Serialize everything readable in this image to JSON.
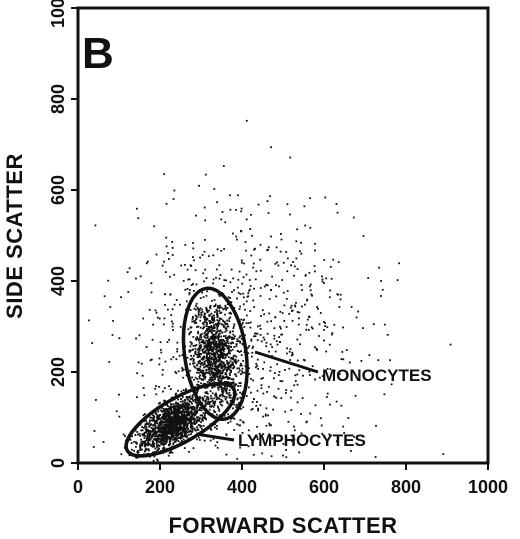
{
  "chart_data": {
    "type": "scatter",
    "panel_label": "B",
    "xlabel": "FORWARD SCATTER",
    "ylabel": "SIDE SCATTER",
    "xlim": [
      0,
      1000
    ],
    "ylim": [
      0,
      1000
    ],
    "xticks": [
      "0",
      "200",
      "400",
      "600",
      "800",
      "1000"
    ],
    "yticks": [
      "0",
      "200",
      "400",
      "600",
      "800",
      "1000"
    ],
    "grid": false,
    "annotations": [
      {
        "label": "MONOCYTES",
        "gate_center": [
          335,
          240
        ],
        "gate_radius": [
          75,
          145
        ],
        "gate_rotation_deg": 8
      },
      {
        "label": "LYMPHOCYTES",
        "gate_center": [
          250,
          95
        ],
        "gate_radius": [
          150,
          48
        ],
        "gate_rotation_deg": 30
      }
    ],
    "clusters": [
      {
        "name": "lymphocytes",
        "center": [
          230,
          85
        ],
        "spread": [
          45,
          22
        ],
        "rotation_deg": 30,
        "count": 1400
      },
      {
        "name": "monocytes",
        "center": [
          335,
          235
        ],
        "spread": [
          28,
          60
        ],
        "rotation_deg": 8,
        "count": 1100
      },
      {
        "name": "background",
        "center": [
          400,
          260
        ],
        "spread": [
          160,
          140
        ],
        "rotation_deg": 35,
        "count": 900
      }
    ],
    "point_color": "#111111"
  }
}
